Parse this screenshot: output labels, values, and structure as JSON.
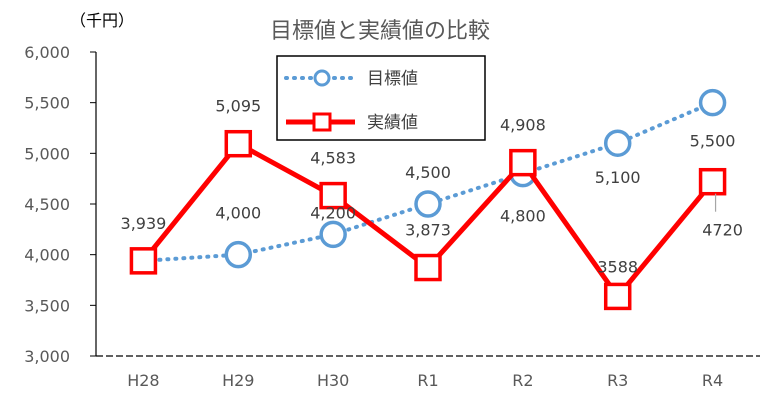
{
  "chart_data": {
    "type": "line",
    "title": "目標値と実績値の比較",
    "unit_label": "（千円）",
    "categories": [
      "H28",
      "H29",
      "H30",
      "R1",
      "R2",
      "R3",
      "R4"
    ],
    "ylim": [
      3000,
      6000
    ],
    "yticks": [
      "3,000",
      "3,500",
      "4,000",
      "4,500",
      "5,000",
      "5,500",
      "6,000"
    ],
    "legend_position": "top-center",
    "series": [
      {
        "name": "目標値",
        "color": "#5b9bd5",
        "style": "dotted-circle",
        "values": [
          null,
          4000,
          4200,
          4500,
          4800,
          5100,
          5500
        ],
        "labels": [
          "",
          "4,000",
          "4,200",
          "4,500",
          "4,800",
          "5,100",
          "5,500"
        ]
      },
      {
        "name": "実績値",
        "color": "#ff0000",
        "style": "solid-square",
        "values": [
          3939,
          5095,
          4583,
          3873,
          4908,
          3588,
          4720
        ],
        "labels": [
          "3,939",
          "5,095",
          "4,583",
          "3,873",
          "4,908",
          "3588",
          "4720"
        ]
      }
    ]
  }
}
